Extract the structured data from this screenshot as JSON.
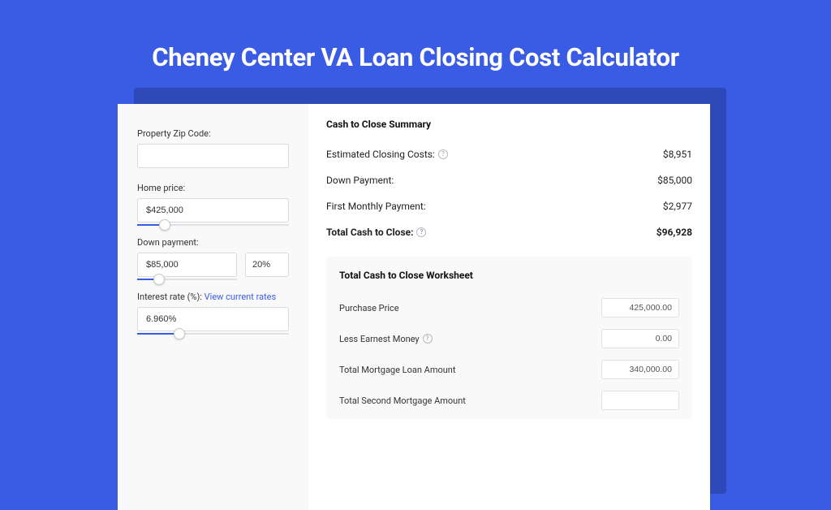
{
  "colors": {
    "page_bg": "#3a5ce4",
    "shadow_card": "#2f48b8",
    "card_bg": "#ffffff",
    "panel_bg": "#f9f9fa",
    "border": "#d9d9de",
    "text": "#333333",
    "link": "#3a5ce4",
    "slider_fill": "#3a5ce4",
    "slider_track": "#e0e0e5"
  },
  "title": "Cheney Center VA Loan Closing Cost Calculator",
  "left": {
    "zip": {
      "label": "Property Zip Code:",
      "value": ""
    },
    "home_price": {
      "label": "Home price:",
      "value": "$425,000",
      "slider_pct": 18
    },
    "down_payment": {
      "label": "Down payment:",
      "value": "$85,000",
      "pct": "20%",
      "slider_pct": 22
    },
    "interest": {
      "label": "Interest rate (%):",
      "link": "View current rates",
      "value": "6.960%",
      "slider_pct": 28
    }
  },
  "summary": {
    "title": "Cash to Close Summary",
    "rows": [
      {
        "label": "Estimated Closing Costs:",
        "help": true,
        "value": "$8,951",
        "bold": false
      },
      {
        "label": "Down Payment:",
        "help": false,
        "value": "$85,000",
        "bold": false
      },
      {
        "label": "First Monthly Payment:",
        "help": false,
        "value": "$2,977",
        "bold": false
      },
      {
        "label": "Total Cash to Close:",
        "help": true,
        "value": "$96,928",
        "bold": true
      }
    ]
  },
  "worksheet": {
    "title": "Total Cash to Close Worksheet",
    "rows": [
      {
        "label": "Purchase Price",
        "help": false,
        "value": "425,000.00"
      },
      {
        "label": "Less Earnest Money",
        "help": true,
        "value": "0.00"
      },
      {
        "label": "Total Mortgage Loan Amount",
        "help": false,
        "value": "340,000.00"
      },
      {
        "label": "Total Second Mortgage Amount",
        "help": false,
        "value": ""
      }
    ]
  }
}
